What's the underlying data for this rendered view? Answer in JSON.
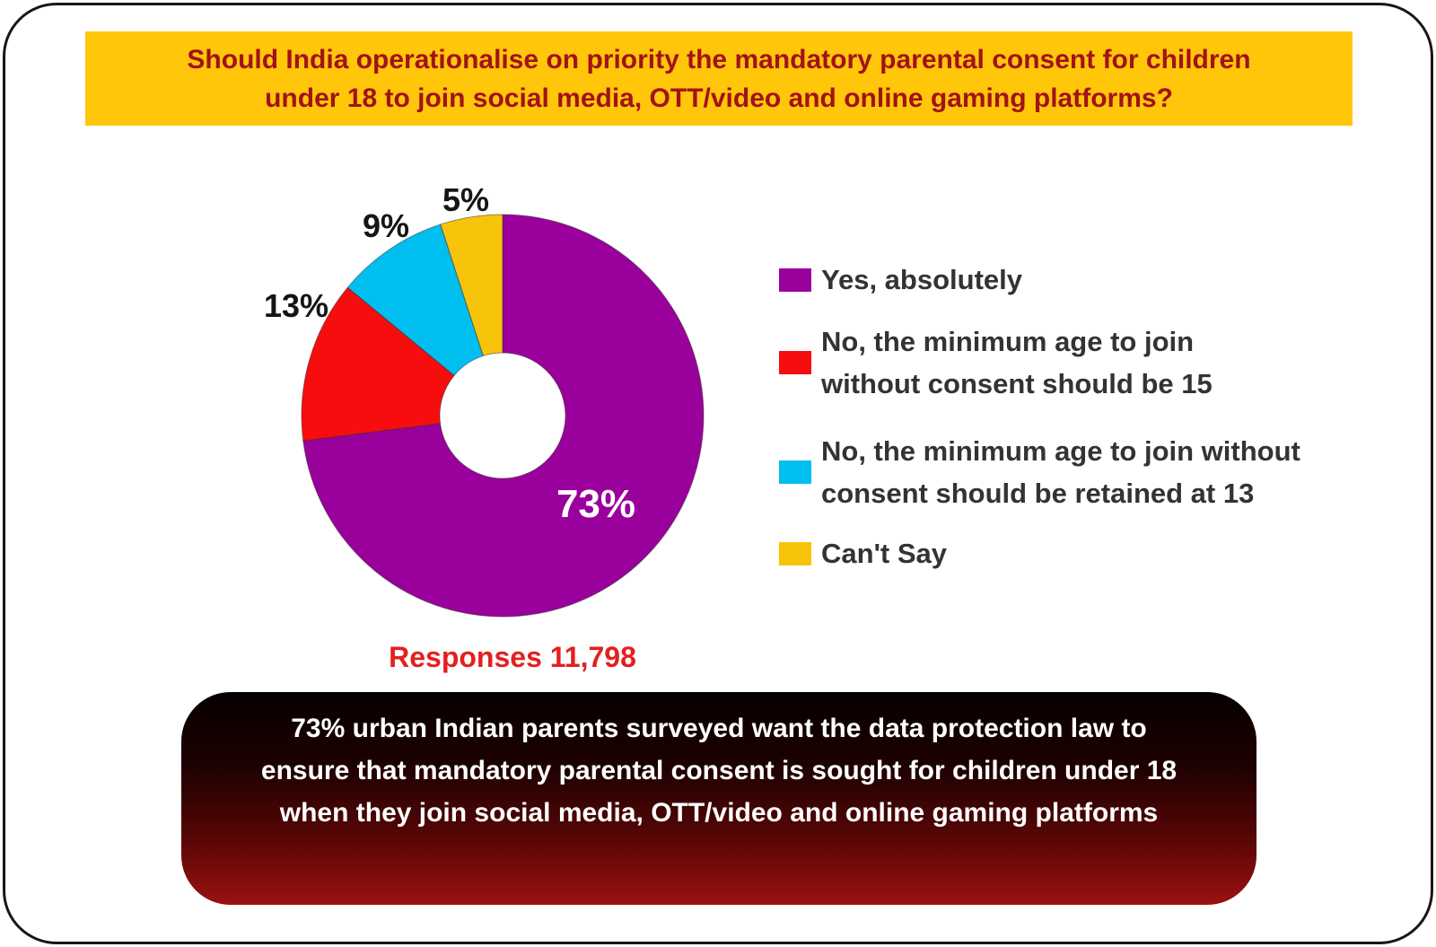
{
  "title_banner": {
    "text": "Should India operationalise on priority the mandatory parental consent for children under 18 to join social media, OTT/video and online gaming platforms?",
    "lines": [
      "Should India operationalise on priority the mandatory parental consent for children",
      "under 18 to join social media, OTT/video and online gaming platforms?"
    ],
    "background": "#FFC60A",
    "text_color": "#A21217"
  },
  "chart_data": {
    "type": "pie",
    "subtype": "donut",
    "unit": "%",
    "start_angle_deg": 0,
    "direction": "clockwise",
    "legend_position": "right",
    "slices": [
      {
        "label": "Yes, absolutely",
        "value": 73,
        "display": "73%",
        "color": "#9A009B"
      },
      {
        "label": "No, the minimum age to join without consent should be 15",
        "value": 13,
        "display": "13%",
        "color": "#F70D0D"
      },
      {
        "label": "No, the minimum age to join without consent should be retained at 13",
        "value": 9,
        "display": "9%",
        "color": "#00BEF0"
      },
      {
        "label": "Can't Say",
        "value": 5,
        "display": "5%",
        "color": "#F7C40B"
      }
    ],
    "responses_note": "Responses 11,798"
  },
  "legend": {
    "items": [
      {
        "color": "#9A009B",
        "lines": [
          "Yes, absolutely"
        ]
      },
      {
        "color": "#F70D0D",
        "lines": [
          "No, the minimum age to join",
          "without consent should be 15"
        ]
      },
      {
        "color": "#00BEF0",
        "lines": [
          "No, the minimum age to join without",
          "consent should be retained at 13"
        ]
      },
      {
        "color": "#F7C40B",
        "lines": [
          "Can't Say"
        ]
      }
    ]
  },
  "responses": {
    "text": "Responses 11,798",
    "color": "#E3201F"
  },
  "footer_box": {
    "text": "73% urban Indian parents surveyed want the data protection law to ensure that mandatory parental consent is sought for children under 18 when they join social media, OTT/video and online gaming platforms",
    "lines": [
      "73% urban Indian parents surveyed want the data protection law to",
      "ensure that mandatory parental consent is sought for children under 18",
      "when they join social media, OTT/video and online gaming platforms"
    ],
    "text_color": "#FFFFFF",
    "gradient_top": "#060000",
    "gradient_bottom": "#9B1111"
  }
}
